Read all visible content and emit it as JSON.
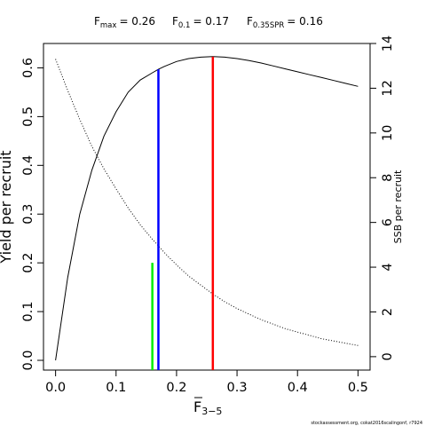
{
  "chart_data": {
    "type": "line",
    "title": {
      "fmax_label": "F",
      "fmax_sub": "max",
      "fmax_value": "= 0.26",
      "f01_label": "F",
      "f01_sub": "0.1",
      "f01_value": "= 0.17",
      "fspr_label": "F",
      "fspr_sub": "0.35SPR",
      "fspr_value": "= 0.16"
    },
    "xlabel_base": "F",
    "xlabel_sub": "3−5",
    "ylabel": "Yield per recruit",
    "y2label": "SSB per recruit",
    "xlim": [
      -0.02,
      0.52
    ],
    "ylim": [
      -0.02,
      0.65
    ],
    "y2lim": [
      -0.6,
      14
    ],
    "x_ticks": [
      0.0,
      0.1,
      0.2,
      0.3,
      0.4,
      0.5
    ],
    "x_tick_labels": [
      "0.0",
      "0.1",
      "0.2",
      "0.3",
      "0.4",
      "0.5"
    ],
    "y_ticks": [
      0.0,
      0.1,
      0.2,
      0.3,
      0.4,
      0.5,
      0.6
    ],
    "y_tick_labels": [
      "0.0",
      "0.1",
      "0.2",
      "0.3",
      "0.4",
      "0.5",
      "0.6"
    ],
    "y2_ticks": [
      0,
      2,
      4,
      6,
      8,
      10,
      12,
      14
    ],
    "y2_tick_labels": [
      "0",
      "2",
      "4",
      "6",
      "8",
      "10",
      "12",
      "14"
    ],
    "grid": false,
    "series": [
      {
        "axis": "left",
        "style": "solid",
        "color": "#000000",
        "x": [
          0.0,
          0.02,
          0.04,
          0.06,
          0.08,
          0.1,
          0.12,
          0.14,
          0.16,
          0.17,
          0.18,
          0.2,
          0.22,
          0.24,
          0.26,
          0.28,
          0.3,
          0.32,
          0.34,
          0.36,
          0.38,
          0.4,
          0.42,
          0.44,
          0.46,
          0.48,
          0.5
        ],
        "y": [
          0.0,
          0.17,
          0.3,
          0.39,
          0.46,
          0.51,
          0.55,
          0.575,
          0.59,
          0.597,
          0.603,
          0.613,
          0.619,
          0.622,
          0.623,
          0.622,
          0.619,
          0.615,
          0.61,
          0.604,
          0.598,
          0.592,
          0.586,
          0.58,
          0.574,
          0.568,
          0.562
        ]
      },
      {
        "axis": "right",
        "style": "dotted",
        "color": "#000000",
        "x": [
          0.0,
          0.02,
          0.04,
          0.06,
          0.08,
          0.1,
          0.12,
          0.14,
          0.16,
          0.18,
          0.2,
          0.22,
          0.24,
          0.26,
          0.28,
          0.3,
          0.32,
          0.34,
          0.36,
          0.38,
          0.4,
          0.42,
          0.44,
          0.46,
          0.48,
          0.5
        ],
        "y": [
          13.3,
          11.9,
          10.6,
          9.4,
          8.4,
          7.5,
          6.65,
          5.9,
          5.25,
          4.65,
          4.1,
          3.6,
          3.2,
          2.8,
          2.45,
          2.15,
          1.9,
          1.65,
          1.45,
          1.25,
          1.1,
          0.95,
          0.8,
          0.7,
          0.6,
          0.5
        ]
      }
    ],
    "reference_lines": [
      {
        "name": "F0.35SPR",
        "x": 0.16,
        "y_top": 0.2,
        "color": "#00ee00"
      },
      {
        "name": "F0.1",
        "x": 0.17,
        "y_top": 0.597,
        "color": "#0000ff"
      },
      {
        "name": "Fmax",
        "x": 0.26,
        "y_top": 0.623,
        "color": "#ff0000"
      }
    ]
  },
  "footer_credit": "stockassessment.org, cokat2016scalingonf, r7924"
}
